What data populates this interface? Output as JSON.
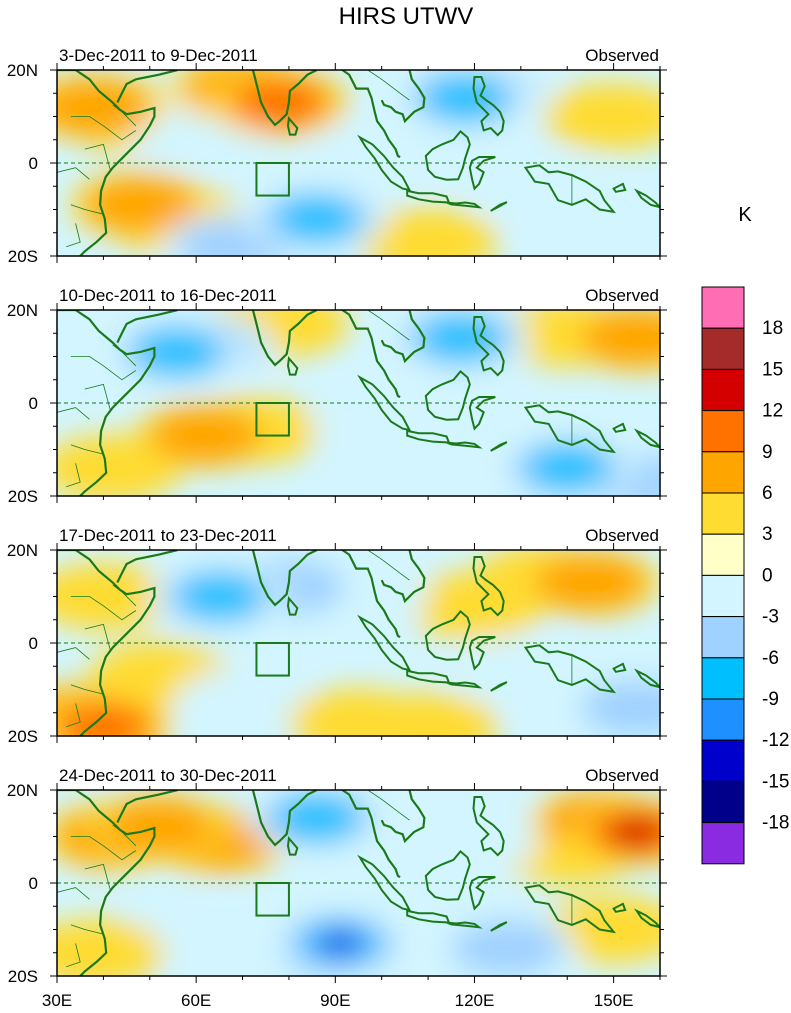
{
  "chart_data": {
    "type": "heatmap",
    "title": "HIRS UTWV",
    "units_label": "K",
    "x_ticks": [
      {
        "value": 30,
        "label": "30E"
      },
      {
        "value": 60,
        "label": "60E"
      },
      {
        "value": 90,
        "label": "90E"
      },
      {
        "value": 120,
        "label": "120E"
      },
      {
        "value": 150,
        "label": "150E"
      }
    ],
    "y_ticks": [
      {
        "value": 20,
        "label": "20N"
      },
      {
        "value": 0,
        "label": "0"
      },
      {
        "value": -20,
        "label": "20S"
      }
    ],
    "lon_range": [
      30,
      160
    ],
    "lat_range": [
      -20,
      20
    ],
    "box_region": {
      "lon": [
        73,
        80
      ],
      "lat": [
        -7,
        0
      ]
    },
    "colorbar": {
      "levels": [
        "18",
        "15",
        "12",
        "9",
        "6",
        "3",
        "0",
        "-3",
        "-6",
        "-9",
        "-12",
        "-15",
        "-18"
      ],
      "colors": [
        "#ff6eb4",
        "#a52a2a",
        "#d40000",
        "#ff7200",
        "#ffa500",
        "#ffdc32",
        "#ffffc8",
        "#d2f5ff",
        "#a0d2ff",
        "#00bfff",
        "#1e90ff",
        "#0000cd",
        "#00008b",
        "#8a2be2"
      ]
    },
    "panels": [
      {
        "period": "3-Dec-2011 to 9-Dec-2011",
        "label": "Observed",
        "anomalies": [
          {
            "lon": 38,
            "lat": 12,
            "value": 6
          },
          {
            "lon": 45,
            "lat": 10,
            "value": 4
          },
          {
            "lon": 78,
            "lat": 13,
            "value": 9
          },
          {
            "lon": 70,
            "lat": 16,
            "value": 7
          },
          {
            "lon": 48,
            "lat": -9,
            "value": 8
          },
          {
            "lon": 55,
            "lat": -12,
            "value": 5
          },
          {
            "lon": 118,
            "lat": 14,
            "value": -9
          },
          {
            "lon": 122,
            "lat": 15,
            "value": -8
          },
          {
            "lon": 86,
            "lat": -12,
            "value": -9
          },
          {
            "lon": 68,
            "lat": -18,
            "value": -8
          },
          {
            "lon": 60,
            "lat": 7,
            "value": -5
          },
          {
            "lon": 150,
            "lat": 10,
            "value": 4
          },
          {
            "lon": 135,
            "lat": -6,
            "value": -4
          },
          {
            "lon": 110,
            "lat": -17,
            "value": 4
          },
          {
            "lon": 100,
            "lat": 2,
            "value": -3
          }
        ]
      },
      {
        "period": "10-Dec-2011 to 16-Dec-2011",
        "label": "Observed",
        "anomalies": [
          {
            "lon": 56,
            "lat": 11,
            "value": -11
          },
          {
            "lon": 62,
            "lat": 12,
            "value": -9
          },
          {
            "lon": 62,
            "lat": -7,
            "value": 6
          },
          {
            "lon": 72,
            "lat": -6,
            "value": 4
          },
          {
            "lon": 42,
            "lat": -14,
            "value": 3
          },
          {
            "lon": 117,
            "lat": 14,
            "value": -9
          },
          {
            "lon": 140,
            "lat": -14,
            "value": -9
          },
          {
            "lon": 155,
            "lat": -17,
            "value": -8
          },
          {
            "lon": 78,
            "lat": 17,
            "value": 5
          },
          {
            "lon": 140,
            "lat": 15,
            "value": 3
          },
          {
            "lon": 155,
            "lat": 14,
            "value": 6
          },
          {
            "lon": 100,
            "lat": -5,
            "value": -4
          },
          {
            "lon": 110,
            "lat": -15,
            "value": -4
          }
        ]
      },
      {
        "period": "17-Dec-2011 to 23-Dec-2011",
        "label": "Observed",
        "anomalies": [
          {
            "lon": 65,
            "lat": 10,
            "value": -9
          },
          {
            "lon": 80,
            "lat": 12,
            "value": -8
          },
          {
            "lon": 95,
            "lat": 10,
            "value": -5
          },
          {
            "lon": 145,
            "lat": 13,
            "value": 8
          },
          {
            "lon": 135,
            "lat": 14,
            "value": 5
          },
          {
            "lon": 40,
            "lat": -18,
            "value": 10
          },
          {
            "lon": 34,
            "lat": -16,
            "value": 7
          },
          {
            "lon": 95,
            "lat": -17,
            "value": 5
          },
          {
            "lon": 110,
            "lat": -18,
            "value": 4
          },
          {
            "lon": 52,
            "lat": -7,
            "value": 4
          },
          {
            "lon": 120,
            "lat": 8,
            "value": 4
          },
          {
            "lon": 155,
            "lat": -14,
            "value": -7
          },
          {
            "lon": 130,
            "lat": -6,
            "value": -5
          },
          {
            "lon": 70,
            "lat": -13,
            "value": -4
          },
          {
            "lon": 40,
            "lat": 10,
            "value": 2
          }
        ]
      },
      {
        "period": "24-Dec-2011 to 30-Dec-2011",
        "label": "Observed",
        "anomalies": [
          {
            "lon": 42,
            "lat": 10,
            "value": 7
          },
          {
            "lon": 52,
            "lat": 12,
            "value": 8
          },
          {
            "lon": 65,
            "lat": 9,
            "value": 7
          },
          {
            "lon": 155,
            "lat": 11,
            "value": 13
          },
          {
            "lon": 147,
            "lat": 13,
            "value": 9
          },
          {
            "lon": 140,
            "lat": 7,
            "value": 5
          },
          {
            "lon": 86,
            "lat": 14,
            "value": -10
          },
          {
            "lon": 91,
            "lat": -13,
            "value": -13
          },
          {
            "lon": 89,
            "lat": -15,
            "value": -11
          },
          {
            "lon": 127,
            "lat": -14,
            "value": -8
          },
          {
            "lon": 120,
            "lat": 10,
            "value": -5
          },
          {
            "lon": 38,
            "lat": -15,
            "value": 4
          },
          {
            "lon": 60,
            "lat": -10,
            "value": -3
          },
          {
            "lon": 110,
            "lat": -2,
            "value": -4
          },
          {
            "lon": 150,
            "lat": -10,
            "value": 3
          }
        ]
      }
    ]
  }
}
